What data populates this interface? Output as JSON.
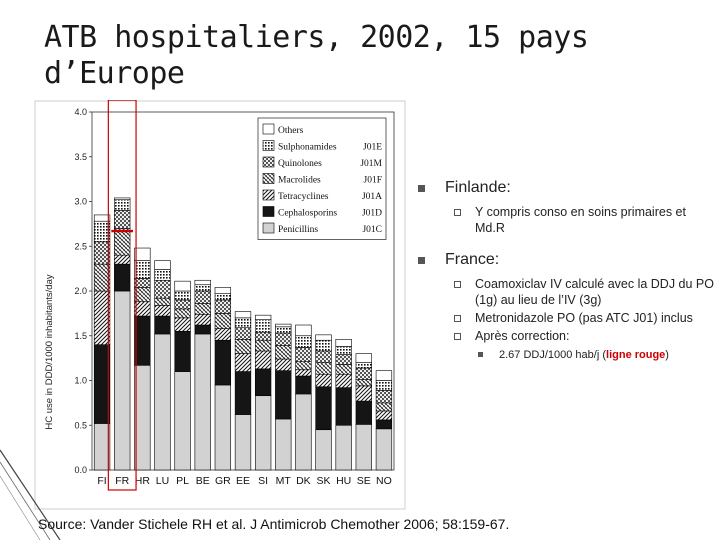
{
  "slide": {
    "title": "ATB hospitaliers, 2002, 15 pays d’Europe",
    "source": "Source: Vander Stichele RH et al. J Antimicrob Chemother 2006; 58:159-67."
  },
  "bullets": {
    "finland": {
      "label": "Finlande:",
      "sub": "Y compris conso en soins primaires et Md.R"
    },
    "france": {
      "label": "France:",
      "sub1": "Coamoxiclav IV calculé avec la DDJ du PO (1g) au lieu de l’IV (3g)",
      "sub2": "Metronidazole PO (pas ATC J01) inclus",
      "sub3": "Après correction:",
      "detail_pre": "2.67 DDJ/1000 hab/j (",
      "detail_red": "ligne rouge",
      "detail_post": ")"
    }
  },
  "colors": {
    "highlight": "#cc0000"
  },
  "chart_data": {
    "type": "bar",
    "stacked": true,
    "categories": [
      "FI",
      "FR",
      "HR",
      "LU",
      "PL",
      "BE",
      "GR",
      "EE",
      "SI",
      "MT",
      "DK",
      "SK",
      "HU",
      "SE",
      "NO"
    ],
    "ylabel": "HC use in DDD/1000 inhabitants/day",
    "ylim": [
      0,
      4.0
    ],
    "yticks": [
      "0.0",
      "0.5",
      "1.0",
      "1.5",
      "2.0",
      "2.5",
      "3.0",
      "3.5",
      "4.0"
    ],
    "series": [
      {
        "name": "Penicillins",
        "code": "J01C",
        "pattern": "pen",
        "values": [
          0.52,
          2.0,
          1.17,
          1.52,
          1.1,
          1.52,
          0.95,
          0.62,
          0.83,
          0.57,
          0.85,
          0.45,
          0.5,
          0.51,
          0.46
        ]
      },
      {
        "name": "Cephalosporins",
        "code": "J01D",
        "pattern": "ceph",
        "values": [
          0.88,
          0.3,
          0.55,
          0.2,
          0.45,
          0.1,
          0.5,
          0.48,
          0.3,
          0.54,
          0.2,
          0.48,
          0.42,
          0.26,
          0.1
        ]
      },
      {
        "name": "Tetracyclines",
        "code": "J01A",
        "pattern": "tet",
        "values": [
          0.6,
          0.1,
          0.16,
          0.12,
          0.15,
          0.12,
          0.13,
          0.2,
          0.2,
          0.13,
          0.07,
          0.14,
          0.15,
          0.17,
          0.1
        ]
      },
      {
        "name": "Macrolides",
        "code": "J01F",
        "pattern": "mac",
        "values": [
          0.3,
          0.3,
          0.16,
          0.08,
          0.1,
          0.12,
          0.17,
          0.16,
          0.12,
          0.15,
          0.09,
          0.13,
          0.11,
          0.07,
          0.09
        ]
      },
      {
        "name": "Quinolones",
        "code": "J01M",
        "pattern": "quin",
        "values": [
          0.25,
          0.2,
          0.1,
          0.2,
          0.1,
          0.14,
          0.15,
          0.13,
          0.09,
          0.14,
          0.16,
          0.13,
          0.11,
          0.13,
          0.14
        ]
      },
      {
        "name": "Sulphonamides",
        "code": "J01E",
        "pattern": "sulph",
        "values": [
          0.23,
          0.12,
          0.2,
          0.12,
          0.1,
          0.07,
          0.07,
          0.11,
          0.14,
          0.07,
          0.13,
          0.12,
          0.09,
          0.06,
          0.11
        ]
      },
      {
        "name": "Others",
        "code": "",
        "pattern": "oth",
        "values": [
          0.07,
          0.02,
          0.14,
          0.1,
          0.11,
          0.05,
          0.07,
          0.07,
          0.05,
          0.03,
          0.12,
          0.06,
          0.08,
          0.1,
          0.11
        ]
      }
    ],
    "reference_line": {
      "category": "FR",
      "value": 2.67
    }
  }
}
